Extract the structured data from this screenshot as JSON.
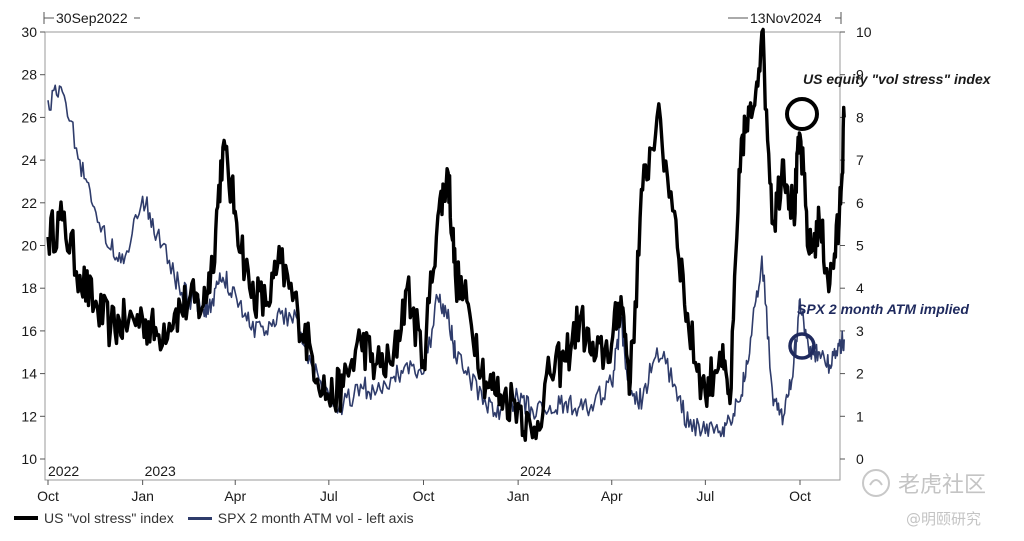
{
  "chart_data": {
    "type": "line",
    "start_label": "30Sep2022",
    "end_label": "13Nov2024",
    "x_month_labels": [
      "Oct",
      "Jan",
      "Apr",
      "Jul",
      "Oct",
      "Jan",
      "Apr",
      "Jul",
      "Oct"
    ],
    "year_labels": [
      "2022",
      "2023",
      "2024"
    ],
    "left_axis": {
      "ylim": [
        10,
        30
      ],
      "ticks": [
        10,
        12,
        14,
        16,
        18,
        20,
        22,
        24,
        26,
        28,
        30
      ]
    },
    "right_axis": {
      "ylim": [
        0,
        10
      ],
      "ticks": [
        0,
        1,
        2,
        3,
        4,
        5,
        6,
        7,
        8,
        9,
        10
      ]
    },
    "series": [
      {
        "name": "US \"vol stress\" index",
        "axis": "right",
        "color": "#000000",
        "x": [
          "2022-10-01",
          "2022-10-15",
          "2022-11-01",
          "2022-11-15",
          "2022-12-01",
          "2022-12-15",
          "2023-01-01",
          "2023-01-15",
          "2023-02-01",
          "2023-02-15",
          "2023-03-01",
          "2023-03-10",
          "2023-03-20",
          "2023-04-01",
          "2023-04-15",
          "2023-05-01",
          "2023-05-15",
          "2023-06-01",
          "2023-06-15",
          "2023-07-01",
          "2023-07-15",
          "2023-08-01",
          "2023-08-15",
          "2023-09-01",
          "2023-09-15",
          "2023-10-01",
          "2023-10-15",
          "2023-10-25",
          "2023-11-01",
          "2023-11-15",
          "2023-12-01",
          "2023-12-15",
          "2024-01-01",
          "2024-01-15",
          "2024-02-01",
          "2024-02-15",
          "2024-03-01",
          "2024-03-15",
          "2024-04-01",
          "2024-04-10",
          "2024-04-19",
          "2024-05-01",
          "2024-05-15",
          "2024-06-01",
          "2024-06-15",
          "2024-07-01",
          "2024-07-15",
          "2024-07-25",
          "2024-08-05",
          "2024-08-15",
          "2024-08-25",
          "2024-09-05",
          "2024-09-15",
          "2024-09-25",
          "2024-10-01",
          "2024-10-10",
          "2024-10-20",
          "2024-10-30",
          "2024-11-08",
          "2024-11-13"
        ],
        "values": [
          5.2,
          5.6,
          4.3,
          3.6,
          3.1,
          3.2,
          3.3,
          2.9,
          3.4,
          3.7,
          3.6,
          4.6,
          7.3,
          5.8,
          4.0,
          3.6,
          4.6,
          3.4,
          2.4,
          1.4,
          1.7,
          2.8,
          2.2,
          2.2,
          4.0,
          2.3,
          5.7,
          6.7,
          4.3,
          3.4,
          1.8,
          1.5,
          1.3,
          0.5,
          2.0,
          2.3,
          3.3,
          2.3,
          2.7,
          3.8,
          1.8,
          6.3,
          8.0,
          5.8,
          3.0,
          1.5,
          2.5,
          1.3,
          7.5,
          8.0,
          10.0,
          5.5,
          7.0,
          5.7,
          7.6,
          4.8,
          5.5,
          4.1,
          5.5,
          8.0
        ]
      },
      {
        "name": "SPX 2 month ATM vol - left axis",
        "axis": "left",
        "color": "#2f3c6b",
        "x": [
          "2022-10-01",
          "2022-10-15",
          "2022-11-01",
          "2022-11-15",
          "2022-12-01",
          "2022-12-15",
          "2023-01-01",
          "2023-01-15",
          "2023-02-01",
          "2023-02-15",
          "2023-03-01",
          "2023-03-10",
          "2023-03-20",
          "2023-04-01",
          "2023-04-15",
          "2023-05-01",
          "2023-05-15",
          "2023-06-01",
          "2023-06-15",
          "2023-07-01",
          "2023-07-15",
          "2023-08-01",
          "2023-08-15",
          "2023-09-01",
          "2023-09-15",
          "2023-10-01",
          "2023-10-15",
          "2023-10-25",
          "2023-11-01",
          "2023-11-15",
          "2023-12-01",
          "2023-12-15",
          "2024-01-01",
          "2024-01-15",
          "2024-02-01",
          "2024-02-15",
          "2024-03-01",
          "2024-03-15",
          "2024-04-01",
          "2024-04-10",
          "2024-04-19",
          "2024-05-01",
          "2024-05-15",
          "2024-06-01",
          "2024-06-15",
          "2024-07-01",
          "2024-07-15",
          "2024-07-25",
          "2024-08-05",
          "2024-08-15",
          "2024-08-25",
          "2024-09-05",
          "2024-09-15",
          "2024-09-25",
          "2024-10-01",
          "2024-10-10",
          "2024-10-20",
          "2024-10-30",
          "2024-11-08",
          "2024-11-13"
        ],
        "values": [
          26.8,
          27.2,
          24.0,
          21.8,
          19.8,
          19.5,
          22.3,
          20.5,
          18.5,
          17.5,
          17.0,
          17.5,
          18.5,
          17.8,
          16.2,
          16.0,
          16.8,
          16.5,
          14.3,
          13.0,
          12.5,
          13.5,
          13.0,
          13.8,
          14.5,
          14.0,
          17.5,
          17.0,
          14.8,
          13.8,
          12.5,
          12.3,
          12.8,
          12.3,
          12.5,
          12.6,
          12.5,
          12.6,
          13.5,
          16.5,
          13.0,
          12.8,
          15.2,
          13.5,
          11.5,
          11.2,
          11.3,
          11.8,
          13.0,
          15.8,
          19.5,
          12.5,
          12.0,
          14.5,
          17.5,
          14.8,
          15.0,
          14.4,
          15.3,
          15.6
        ]
      }
    ],
    "annotations": [
      {
        "text": "US equity \"vol stress\" index"
      },
      {
        "text": "SPX 2 month ATM implied"
      }
    ]
  },
  "legend": {
    "series1": "US \"vol stress\" index",
    "series2": "SPX 2 month ATM vol - left axis"
  },
  "watermarks": {
    "top": "老虎社区",
    "bottom": "@明颐研究"
  },
  "colors": {
    "stress": "#000000",
    "spx": "#2f3c6b",
    "annot_blue": "#1f2a5e"
  }
}
